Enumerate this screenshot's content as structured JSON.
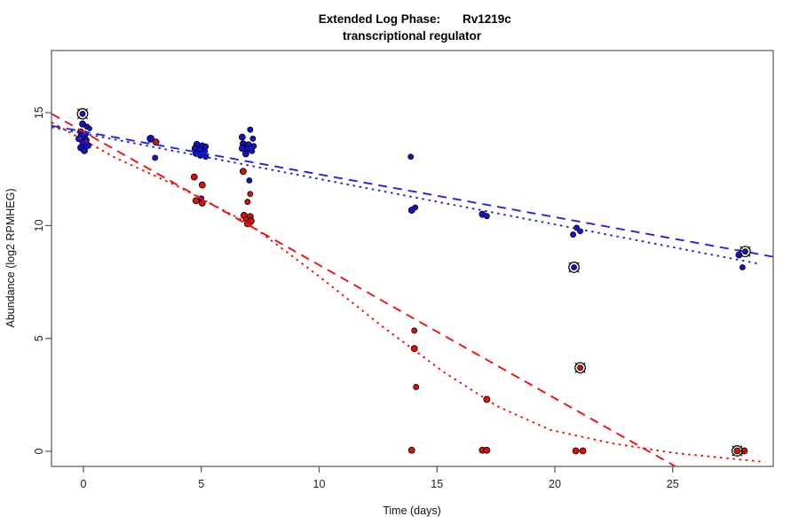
{
  "title": {
    "left": "Extended Log Phase:",
    "right": "Rv1219c",
    "line2": "transcriptional regulator"
  },
  "chart_data": {
    "type": "scatter",
    "title": "Extended Log Phase:  Rv1219c",
    "subtitle": "transcriptional regulator",
    "xlabel": "Time  (days)",
    "ylabel": "Abundance  (log2 RPMHEG)",
    "xlim": [
      -1.4,
      29.3
    ],
    "ylim": [
      -0.7,
      17.8
    ],
    "x_ticks": [
      0,
      5,
      10,
      15,
      20,
      25
    ],
    "y_ticks": [
      0,
      5,
      10,
      15
    ],
    "grid": false,
    "legend": "none",
    "point_columns": [
      "day",
      "value",
      "radius_px",
      "x_jitter_px",
      "circled"
    ],
    "series": [
      {
        "name": "blue",
        "color": "#1313cc",
        "points": [
          [
            0,
            14.95,
            3,
            -1,
            1
          ],
          [
            0,
            14.5,
            3.5,
            -1
          ],
          [
            0,
            14.38,
            3,
            4
          ],
          [
            0,
            14.3,
            2.5,
            7
          ],
          [
            0,
            14.15,
            3.5,
            -3
          ],
          [
            0,
            14.05,
            3.5,
            2
          ],
          [
            0,
            13.95,
            4,
            -2
          ],
          [
            0,
            13.85,
            3.5,
            -5
          ],
          [
            0,
            13.78,
            3.5,
            3
          ],
          [
            0,
            13.65,
            4,
            0
          ],
          [
            0,
            13.55,
            3.5,
            5
          ],
          [
            0,
            13.45,
            3.5,
            -3
          ],
          [
            0,
            13.32,
            3.5,
            1
          ],
          [
            3,
            13.85,
            4,
            -4
          ],
          [
            3,
            13.0,
            3,
            1
          ],
          [
            5,
            13.6,
            3.5,
            -5
          ],
          [
            5,
            13.55,
            3,
            1
          ],
          [
            5,
            13.5,
            3,
            5
          ],
          [
            5,
            13.42,
            3.5,
            -7
          ],
          [
            5,
            13.35,
            3.5,
            -1
          ],
          [
            5,
            13.3,
            3,
            4
          ],
          [
            5,
            13.2,
            3.5,
            -6
          ],
          [
            5,
            13.12,
            3.5,
            -1
          ],
          [
            5,
            13.05,
            3,
            5
          ],
          [
            5,
            11.2,
            3,
            0
          ],
          [
            7,
            14.25,
            3,
            2
          ],
          [
            7,
            13.92,
            3.5,
            -7
          ],
          [
            7,
            13.85,
            3,
            5
          ],
          [
            7,
            13.62,
            3.5,
            -6
          ],
          [
            7,
            13.58,
            3.5,
            0
          ],
          [
            7,
            13.52,
            3,
            6
          ],
          [
            7,
            13.42,
            3.5,
            -7
          ],
          [
            7,
            13.38,
            3.5,
            -1
          ],
          [
            7,
            13.3,
            3,
            4
          ],
          [
            7,
            13.18,
            3.5,
            -3
          ],
          [
            7,
            12.0,
            3,
            1
          ],
          [
            14,
            13.05,
            3,
            -3
          ],
          [
            14,
            10.8,
            3,
            2
          ],
          [
            14,
            10.68,
            3.5,
            -2
          ],
          [
            17,
            10.5,
            3.5,
            -2
          ],
          [
            17,
            10.42,
            3,
            3
          ],
          [
            21,
            9.9,
            3,
            -2
          ],
          [
            21,
            9.75,
            3,
            2
          ],
          [
            21,
            9.6,
            3,
            -6
          ],
          [
            21,
            8.15,
            3,
            -5,
            1
          ],
          [
            28,
            8.85,
            3,
            2,
            1
          ],
          [
            28,
            8.7,
            3.5,
            -5
          ],
          [
            28,
            8.15,
            3,
            -1
          ]
        ]
      },
      {
        "name": "red",
        "color": "#dd1008",
        "points": [
          [
            3,
            13.7,
            3.5,
            2
          ],
          [
            5,
            12.15,
            3.5,
            -8
          ],
          [
            5,
            11.8,
            3.5,
            1
          ],
          [
            5,
            11.1,
            3.5,
            -6
          ],
          [
            5,
            11.0,
            3.5,
            1
          ],
          [
            7,
            12.4,
            3.5,
            -6
          ],
          [
            7,
            11.4,
            3,
            2
          ],
          [
            7,
            11.05,
            3,
            -1
          ],
          [
            7,
            10.45,
            3.5,
            -5
          ],
          [
            7,
            10.4,
            3.5,
            2
          ],
          [
            7,
            10.28,
            3,
            -3
          ],
          [
            7,
            10.2,
            3.5,
            3
          ],
          [
            7,
            10.08,
            3.5,
            -1
          ],
          [
            14,
            5.35,
            3,
            1
          ],
          [
            14,
            4.55,
            3.5,
            1
          ],
          [
            14,
            2.85,
            3,
            3
          ],
          [
            14,
            0.05,
            3.5,
            -2
          ],
          [
            17,
            2.3,
            3.5,
            3
          ],
          [
            17,
            0.05,
            3.5,
            -2
          ],
          [
            17,
            0.05,
            3.5,
            3
          ],
          [
            21,
            3.7,
            3,
            2,
            1
          ],
          [
            21,
            0.02,
            3.5,
            -3
          ],
          [
            21,
            0.02,
            3.5,
            5
          ],
          [
            28,
            0.02,
            3.5,
            -7,
            1
          ],
          [
            28,
            0.02,
            3.5,
            1
          ]
        ]
      }
    ],
    "trend_lines": [
      {
        "name": "blue-longdash",
        "color": "#2323e0",
        "style": "longdash",
        "points": [
          [
            -1.35,
            14.42
          ],
          [
            29.25,
            8.62
          ]
        ]
      },
      {
        "name": "blue-dotted",
        "color": "#2323e0",
        "style": "dotted",
        "points": [
          [
            -1.35,
            14.35
          ],
          [
            28.6,
            8.32
          ]
        ]
      },
      {
        "name": "red-longdash",
        "color": "#ee1010",
        "style": "longdash",
        "points": [
          [
            -1.35,
            14.95
          ],
          [
            25.1,
            -0.66
          ]
        ]
      },
      {
        "name": "red-dotted-curve",
        "color": "#ee1010",
        "style": "dotted",
        "points": [
          [
            -1.35,
            14.57
          ],
          [
            1.36,
            13.0
          ],
          [
            4.0,
            11.74
          ],
          [
            7.0,
            10.1
          ],
          [
            10.0,
            7.75
          ],
          [
            12.66,
            5.55
          ],
          [
            15.3,
            3.5
          ],
          [
            17.55,
            2.0
          ],
          [
            19.8,
            0.95
          ],
          [
            22.45,
            0.35
          ],
          [
            25.1,
            -0.08
          ],
          [
            28.9,
            -0.47
          ]
        ]
      }
    ]
  }
}
